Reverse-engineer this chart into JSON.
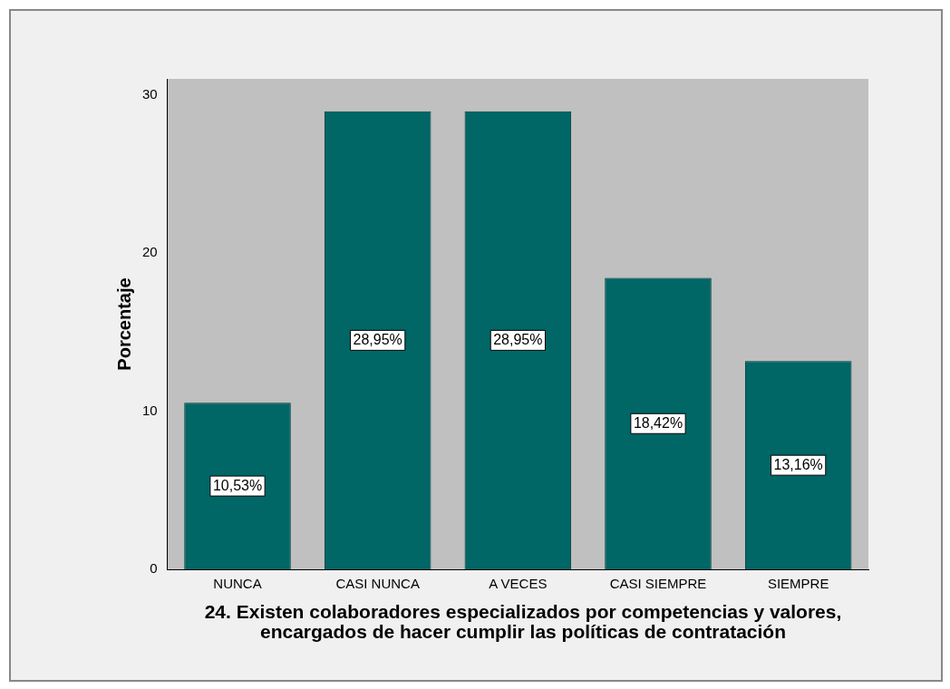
{
  "chart_data": {
    "type": "bar",
    "xlabel": "24. Existen colaboradores especializados por competencias y valores, encargados de hacer cumplir las políticas de contratación",
    "ylabel": "Porcentaje",
    "categories": [
      "NUNCA",
      "CASI NUNCA",
      "A VECES",
      "CASI SIEMPRE",
      "SIEMPRE"
    ],
    "values": [
      10.53,
      28.95,
      28.95,
      18.42,
      13.16
    ],
    "value_labels": [
      "10,53%",
      "28,95%",
      "28,95%",
      "18,42%",
      "13,16%"
    ],
    "color": "#006666",
    "ylim": [
      0,
      31
    ],
    "yticks": [
      0,
      10,
      20,
      30
    ],
    "grid": false,
    "legend": false
  }
}
